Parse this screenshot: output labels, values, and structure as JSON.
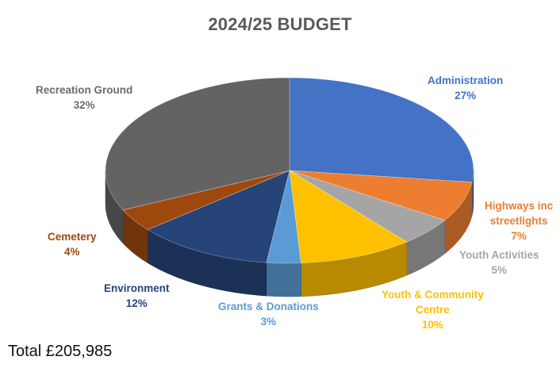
{
  "chart_data": {
    "type": "pie",
    "style": "3d",
    "title": "2024/25 BUDGET",
    "slices": [
      {
        "label": "Administration",
        "label_lines": [
          "Administration"
        ],
        "value": 27,
        "value_label": "27%",
        "color": "#4472C4",
        "label_color": "#4472C4"
      },
      {
        "label": "Highways inc streetlights",
        "label_lines": [
          "Highways inc",
          "streetlights"
        ],
        "value": 7,
        "value_label": "7%",
        "color": "#ED7D31",
        "label_color": "#ED7D31"
      },
      {
        "label": "Youth Activities",
        "label_lines": [
          "Youth Activities"
        ],
        "value": 5,
        "value_label": "5%",
        "color": "#A5A5A5",
        "label_color": "#A5A5A5"
      },
      {
        "label": "Youth & Community Centre",
        "label_lines": [
          "Youth & Community",
          "Centre"
        ],
        "value": 10,
        "value_label": "10%",
        "color": "#FFC000",
        "label_color": "#FFC000"
      },
      {
        "label": "Grants & Donations",
        "label_lines": [
          "Grants & Donations"
        ],
        "value": 3,
        "value_label": "3%",
        "color": "#5B9BD5",
        "label_color": "#5B9BD5"
      },
      {
        "label": "Environment",
        "label_lines": [
          "Environment"
        ],
        "value": 12,
        "value_label": "12%",
        "color": "#264478",
        "label_color": "#264478"
      },
      {
        "label": "Cemetery",
        "label_lines": [
          "Cemetery"
        ],
        "value": 4,
        "value_label": "4%",
        "color": "#9E480E",
        "label_color": "#9E480E"
      },
      {
        "label": "Recreation Ground",
        "label_lines": [
          "Recreation Ground"
        ],
        "value": 32,
        "value_label": "32%",
        "color": "#636363",
        "label_color": "#6b6b6b"
      }
    ]
  },
  "total_text": "Total £205,985"
}
